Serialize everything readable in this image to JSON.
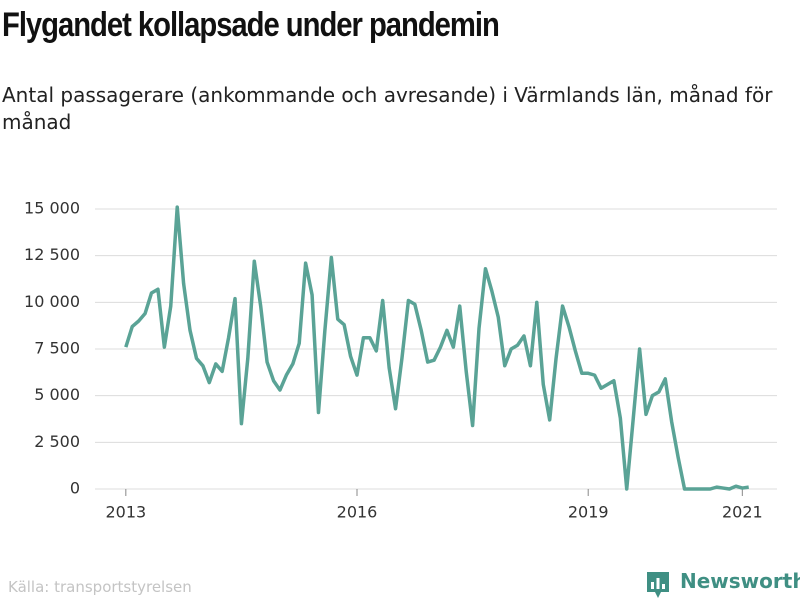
{
  "chart_data": {
    "type": "line",
    "title": "Flygandet kollapsade under pandemin",
    "subtitle": "Antal passagerare (ankommande och avresande) i Värmlands län, månad för månad",
    "source": "Källa: transportstyrelsen",
    "brand": "Newsworthy",
    "color": "#5aa396",
    "x": [
      2013,
      2013.083,
      2013.167,
      2013.25,
      2013.333,
      2013.417,
      2013.5,
      2013.583,
      2013.667,
      2013.75,
      2013.833,
      2013.917,
      2014,
      2014.083,
      2014.167,
      2014.25,
      2014.333,
      2014.417,
      2014.5,
      2014.583,
      2014.667,
      2014.75,
      2014.833,
      2014.917,
      2015,
      2015.083,
      2015.167,
      2015.25,
      2015.333,
      2015.417,
      2015.5,
      2015.583,
      2015.667,
      2015.75,
      2015.833,
      2015.917,
      2016,
      2016.083,
      2016.167,
      2016.25,
      2016.333,
      2016.417,
      2016.5,
      2016.583,
      2016.667,
      2016.75,
      2016.833,
      2016.917,
      2017,
      2017.083,
      2017.167,
      2017.25,
      2017.333,
      2017.417,
      2017.5,
      2017.583,
      2017.667,
      2017.75,
      2017.833,
      2017.917,
      2018,
      2018.083,
      2018.167,
      2018.25,
      2018.333,
      2018.417,
      2018.5,
      2018.583,
      2018.667,
      2018.75,
      2018.833,
      2018.917,
      2019,
      2019.083,
      2019.167,
      2019.25,
      2019.333,
      2019.417,
      2019.5,
      2019.583,
      2019.667,
      2019.75,
      2019.833,
      2019.917,
      2020,
      2020.083,
      2020.167,
      2020.25,
      2020.333,
      2020.417,
      2020.5,
      2020.583,
      2020.667,
      2020.75,
      2020.833,
      2020.917,
      2021,
      2021.083
    ],
    "values": [
      7600,
      8700,
      9000,
      9400,
      10500,
      10700,
      7600,
      9800,
      15100,
      11000,
      8500,
      7000,
      6600,
      5700,
      6700,
      6300,
      8100,
      10200,
      3500,
      7000,
      12200,
      9800,
      6800,
      5800,
      5300,
      6100,
      6700,
      7800,
      12100,
      10400,
      4100,
      8500,
      12400,
      9100,
      8800,
      7100,
      6100,
      8100,
      8100,
      7400,
      10100,
      6500,
      4300,
      7000,
      10100,
      9900,
      8500,
      6800,
      6900,
      7600,
      8500,
      7600,
      9800,
      6300,
      3400,
      8600,
      11800,
      10600,
      9200,
      6600,
      7500,
      7700,
      8200,
      6600,
      10000,
      5600,
      3700,
      7000,
      9800,
      8700,
      7400,
      6200,
      6200,
      6100,
      5400,
      5600,
      5800,
      3800,
      0,
      3700,
      7500,
      4000,
      5000,
      5200,
      5900,
      3600,
      1700,
      0,
      0,
      0,
      0,
      0,
      100,
      50,
      0,
      150,
      50,
      100
    ],
    "xlim": [
      2012.6,
      2021.45
    ],
    "xticks": [
      2013,
      2016,
      2019,
      2021
    ],
    "ylim": [
      0,
      15000
    ],
    "yticks": [
      0,
      {
        "value": 2500,
        "label": "2 500"
      },
      {
        "value": 5000,
        "label": "5 000"
      },
      {
        "value": 7500,
        "label": "7 500"
      },
      {
        "value": 10000,
        "label": "10 000"
      },
      {
        "value": 12500,
        "label": "12 500"
      },
      {
        "value": 15000,
        "label": "15 000"
      }
    ],
    "grid": true
  }
}
